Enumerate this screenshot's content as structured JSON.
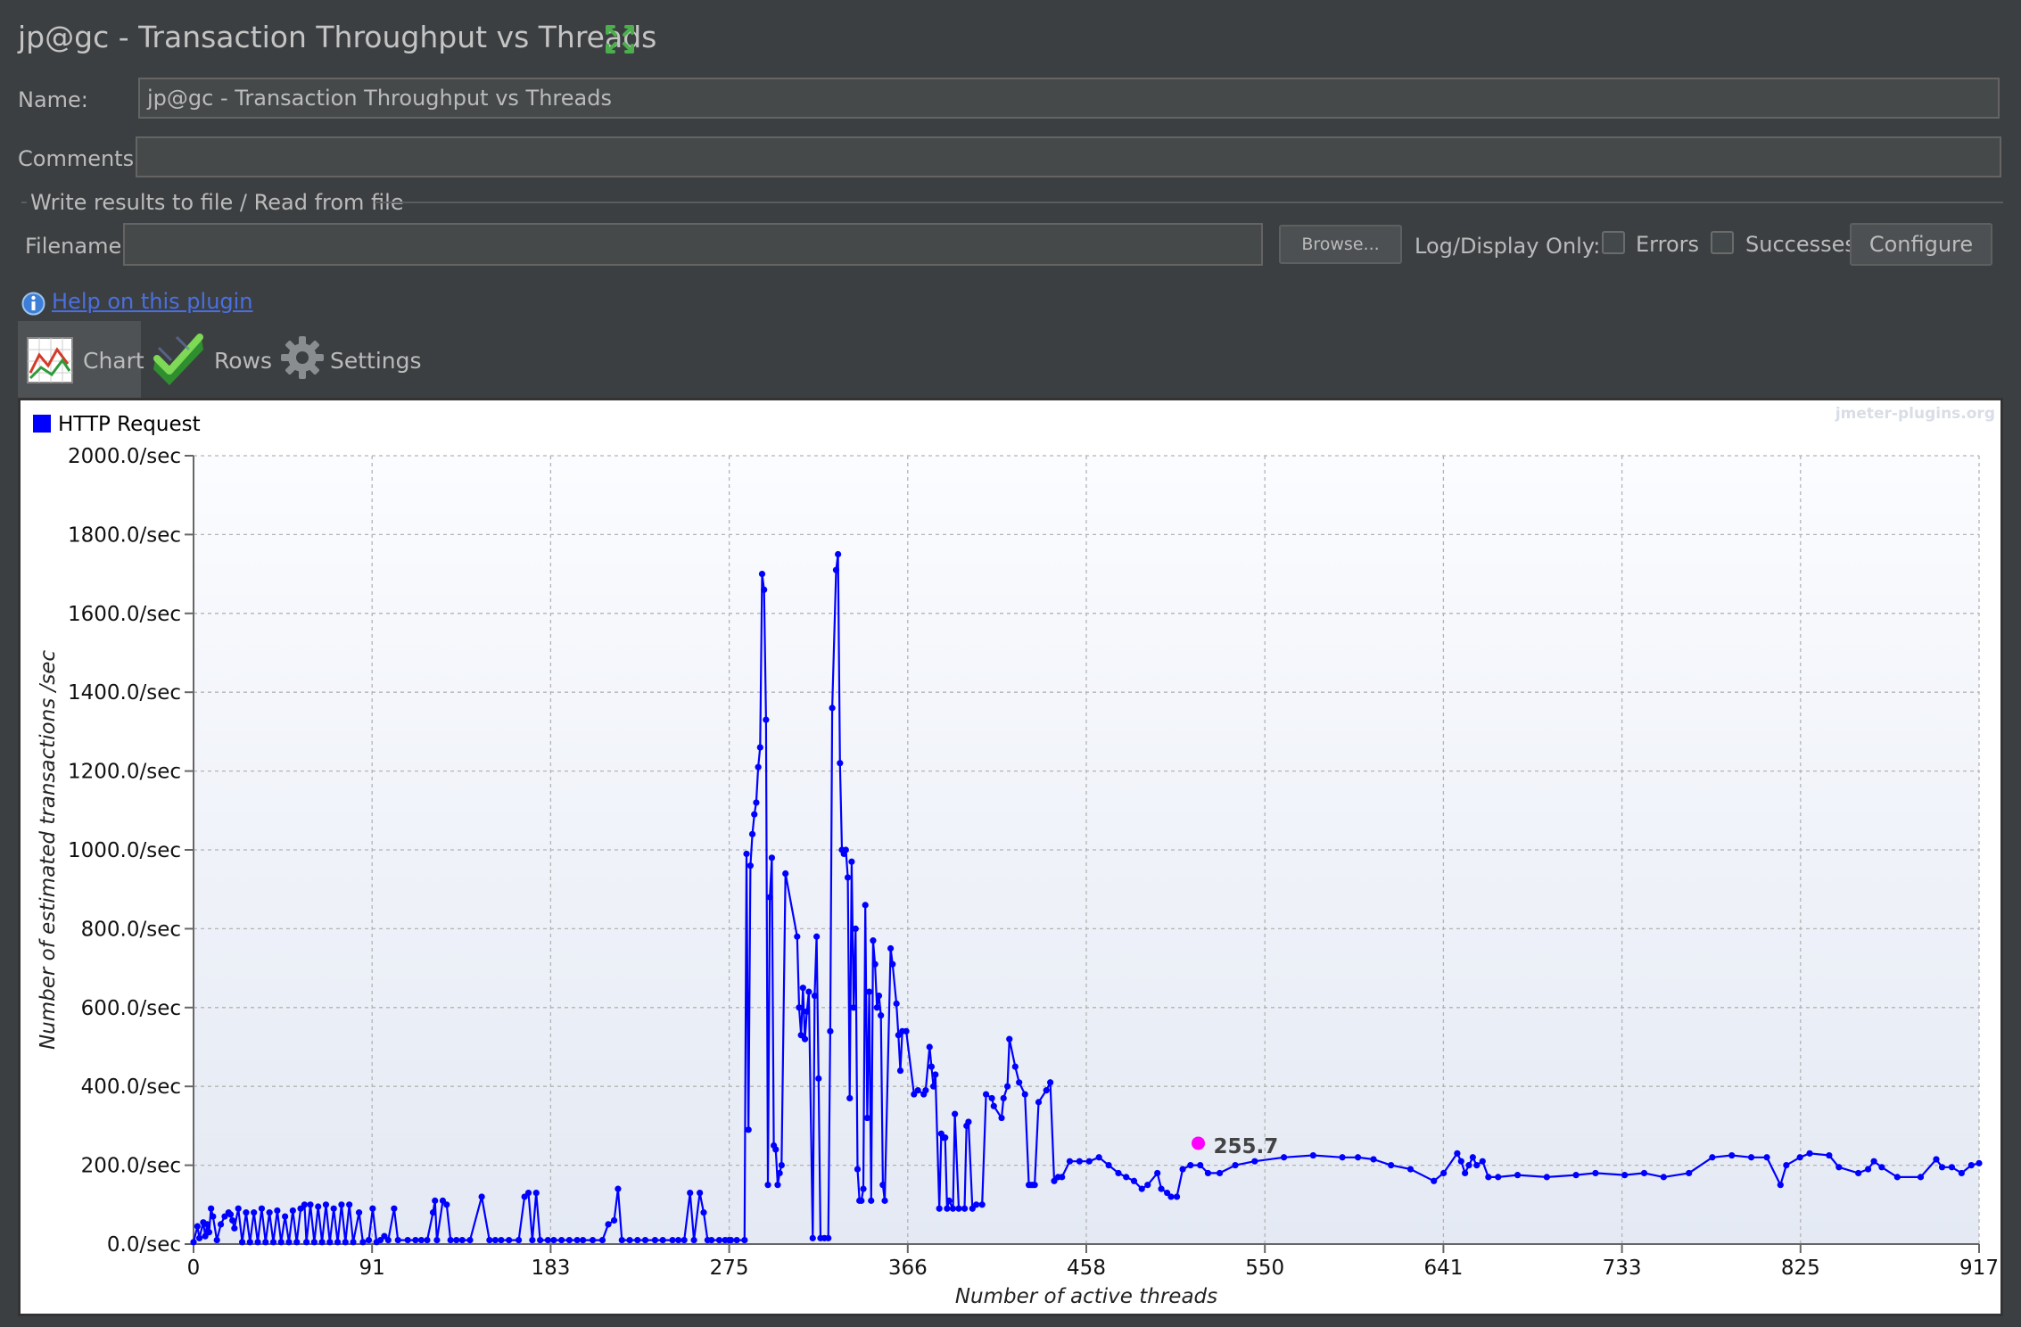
{
  "window": {
    "title": "jp@gc - Transaction Throughput vs Threads",
    "maximize_icon": "maximize-icon"
  },
  "form": {
    "name_label": "Name:",
    "name_value": "jp@gc - Transaction Throughput vs Threads",
    "comments_label": "Comments:",
    "comments_value": "",
    "file_group_title": "Write results to file / Read from file",
    "filename_label": "Filename",
    "filename_value": "",
    "browse_label": "Browse...",
    "log_display_label": "Log/Display Only:",
    "errors_label": "Errors",
    "errors_checked": false,
    "successes_label": "Successes",
    "successes_checked": false,
    "configure_label": "Configure"
  },
  "help": {
    "link_text": "Help on this plugin",
    "icon": "info-icon"
  },
  "tabs": [
    {
      "label": "Chart",
      "icon": "chart-icon",
      "selected": true
    },
    {
      "label": "Rows",
      "icon": "checkmark-icon",
      "selected": false
    },
    {
      "label": "Settings",
      "icon": "gear-icon",
      "selected": false
    }
  ],
  "colors": {
    "series": "#0000ff",
    "tooltip_marker": "#ff00ff",
    "background": "#3c3f41"
  },
  "chart_data": {
    "type": "line",
    "title": "",
    "watermark": "jmeter-plugins.org",
    "xlabel": "Number of active threads",
    "ylabel": "Number of estimated transactions /sec",
    "xlim": [
      0,
      917
    ],
    "ylim": [
      0,
      2000
    ],
    "x_ticks": [
      "0",
      "91",
      "183",
      "275",
      "366",
      "458",
      "550",
      "641",
      "733",
      "825",
      "917"
    ],
    "y_ticks": [
      "0.0/sec",
      "200.0/sec",
      "400.0/sec",
      "600.0/sec",
      "800.0/sec",
      "1000.0/sec",
      "1200.0/sec",
      "1400.0/sec",
      "1600.0/sec",
      "1800.0/sec",
      "2000.0/sec"
    ],
    "grid": true,
    "legend": {
      "placement": "top-left",
      "entries": [
        "HTTP Request"
      ]
    },
    "tooltip": {
      "x": 516,
      "y": 255.7,
      "label": "255.7"
    },
    "series": [
      {
        "name": "HTTP Request",
        "points": [
          [
            0,
            5
          ],
          [
            2,
            45
          ],
          [
            3,
            15
          ],
          [
            5,
            55
          ],
          [
            6,
            20
          ],
          [
            7,
            50
          ],
          [
            8,
            30
          ],
          [
            9,
            90
          ],
          [
            10,
            70
          ],
          [
            12,
            10
          ],
          [
            14,
            50
          ],
          [
            16,
            70
          ],
          [
            18,
            80
          ],
          [
            19,
            75
          ],
          [
            20,
            60
          ],
          [
            21,
            40
          ],
          [
            23,
            90
          ],
          [
            25,
            5
          ],
          [
            27,
            80
          ],
          [
            29,
            5
          ],
          [
            31,
            80
          ],
          [
            33,
            5
          ],
          [
            35,
            90
          ],
          [
            37,
            5
          ],
          [
            39,
            80
          ],
          [
            41,
            5
          ],
          [
            43,
            85
          ],
          [
            45,
            5
          ],
          [
            47,
            70
          ],
          [
            49,
            5
          ],
          [
            51,
            85
          ],
          [
            53,
            5
          ],
          [
            55,
            90
          ],
          [
            57,
            100
          ],
          [
            58,
            5
          ],
          [
            60,
            100
          ],
          [
            62,
            5
          ],
          [
            64,
            95
          ],
          [
            66,
            5
          ],
          [
            68,
            100
          ],
          [
            70,
            5
          ],
          [
            72,
            90
          ],
          [
            74,
            5
          ],
          [
            76,
            100
          ],
          [
            78,
            5
          ],
          [
            80,
            100
          ],
          [
            82,
            5
          ],
          [
            85,
            80
          ],
          [
            87,
            5
          ],
          [
            90,
            10
          ],
          [
            92,
            90
          ],
          [
            94,
            5
          ],
          [
            96,
            10
          ],
          [
            98,
            20
          ],
          [
            100,
            10
          ],
          [
            103,
            90
          ],
          [
            105,
            10
          ],
          [
            110,
            10
          ],
          [
            114,
            10
          ],
          [
            117,
            10
          ],
          [
            120,
            10
          ],
          [
            123,
            80
          ],
          [
            124,
            110
          ],
          [
            125,
            10
          ],
          [
            128,
            110
          ],
          [
            130,
            100
          ],
          [
            132,
            10
          ],
          [
            135,
            10
          ],
          [
            138,
            10
          ],
          [
            142,
            10
          ],
          [
            148,
            120
          ],
          [
            152,
            10
          ],
          [
            155,
            10
          ],
          [
            158,
            10
          ],
          [
            162,
            10
          ],
          [
            167,
            10
          ],
          [
            170,
            120
          ],
          [
            172,
            130
          ],
          [
            174,
            10
          ],
          [
            176,
            130
          ],
          [
            178,
            10
          ],
          [
            182,
            10
          ],
          [
            185,
            10
          ],
          [
            189,
            10
          ],
          [
            193,
            10
          ],
          [
            197,
            10
          ],
          [
            200,
            10
          ],
          [
            205,
            10
          ],
          [
            210,
            10
          ],
          [
            213,
            50
          ],
          [
            216,
            60
          ],
          [
            218,
            140
          ],
          [
            220,
            10
          ],
          [
            224,
            10
          ],
          [
            228,
            10
          ],
          [
            232,
            10
          ],
          [
            237,
            10
          ],
          [
            241,
            10
          ],
          [
            246,
            10
          ],
          [
            249,
            10
          ],
          [
            252,
            10
          ],
          [
            255,
            130
          ],
          [
            257,
            10
          ],
          [
            260,
            130
          ],
          [
            262,
            80
          ],
          [
            264,
            10
          ],
          [
            266,
            10
          ],
          [
            270,
            10
          ],
          [
            273,
            10
          ],
          [
            275,
            10
          ],
          [
            276,
            10
          ],
          [
            279,
            10
          ],
          [
            283,
            10
          ],
          [
            284,
            990
          ],
          [
            285,
            290
          ],
          [
            286,
            960
          ],
          [
            287,
            1040
          ],
          [
            288,
            1090
          ],
          [
            289,
            1120
          ],
          [
            290,
            1210
          ],
          [
            291,
            1260
          ],
          [
            292,
            1700
          ],
          [
            293,
            1660
          ],
          [
            294,
            1330
          ],
          [
            295,
            150
          ],
          [
            296,
            880
          ],
          [
            297,
            980
          ],
          [
            298,
            250
          ],
          [
            299,
            240
          ],
          [
            300,
            150
          ],
          [
            301,
            180
          ],
          [
            302,
            200
          ],
          [
            304,
            940
          ],
          [
            310,
            780
          ],
          [
            311,
            600
          ],
          [
            312,
            530
          ],
          [
            313,
            650
          ],
          [
            314,
            520
          ],
          [
            315,
            590
          ],
          [
            316,
            640
          ],
          [
            318,
            15
          ],
          [
            319,
            630
          ],
          [
            320,
            780
          ],
          [
            321,
            420
          ],
          [
            322,
            15
          ],
          [
            324,
            15
          ],
          [
            326,
            15
          ],
          [
            327,
            540
          ],
          [
            328,
            1360
          ],
          [
            330,
            1710
          ],
          [
            331,
            1750
          ],
          [
            332,
            1220
          ],
          [
            333,
            1000
          ],
          [
            334,
            990
          ],
          [
            335,
            1000
          ],
          [
            336,
            930
          ],
          [
            337,
            370
          ],
          [
            338,
            970
          ],
          [
            339,
            600
          ],
          [
            340,
            800
          ],
          [
            341,
            190
          ],
          [
            342,
            110
          ],
          [
            343,
            110
          ],
          [
            344,
            140
          ],
          [
            345,
            860
          ],
          [
            346,
            320
          ],
          [
            347,
            640
          ],
          [
            348,
            110
          ],
          [
            349,
            770
          ],
          [
            350,
            710
          ],
          [
            351,
            600
          ],
          [
            352,
            630
          ],
          [
            353,
            580
          ],
          [
            354,
            150
          ],
          [
            355,
            110
          ],
          [
            358,
            750
          ],
          [
            359,
            710
          ],
          [
            361,
            610
          ],
          [
            362,
            530
          ],
          [
            363,
            440
          ],
          [
            364,
            540
          ],
          [
            366,
            540
          ],
          [
            370,
            380
          ],
          [
            372,
            390
          ],
          [
            375,
            380
          ],
          [
            376,
            390
          ],
          [
            378,
            500
          ],
          [
            379,
            450
          ],
          [
            380,
            400
          ],
          [
            381,
            430
          ],
          [
            383,
            90
          ],
          [
            384,
            280
          ],
          [
            385,
            270
          ],
          [
            386,
            270
          ],
          [
            387,
            90
          ],
          [
            388,
            110
          ],
          [
            390,
            90
          ],
          [
            391,
            330
          ],
          [
            393,
            90
          ],
          [
            396,
            90
          ],
          [
            397,
            300
          ],
          [
            398,
            310
          ],
          [
            400,
            90
          ],
          [
            402,
            100
          ],
          [
            405,
            100
          ],
          [
            407,
            380
          ],
          [
            410,
            370
          ],
          [
            411,
            350
          ],
          [
            415,
            320
          ],
          [
            416,
            370
          ],
          [
            418,
            400
          ],
          [
            419,
            520
          ],
          [
            422,
            450
          ],
          [
            424,
            410
          ],
          [
            427,
            380
          ],
          [
            429,
            150
          ],
          [
            430,
            150
          ],
          [
            431,
            150
          ],
          [
            432,
            150
          ],
          [
            434,
            360
          ],
          [
            438,
            390
          ],
          [
            440,
            410
          ],
          [
            442,
            160
          ],
          [
            444,
            170
          ],
          [
            446,
            170
          ],
          [
            450,
            210
          ],
          [
            455,
            210
          ],
          [
            460,
            210
          ],
          [
            465,
            220
          ],
          [
            470,
            200
          ],
          [
            475,
            180
          ],
          [
            479,
            170
          ],
          [
            483,
            160
          ],
          [
            487,
            140
          ],
          [
            490,
            150
          ],
          [
            495,
            180
          ],
          [
            497,
            140
          ],
          [
            500,
            130
          ],
          [
            502,
            120
          ],
          [
            505,
            120
          ],
          [
            508,
            190
          ],
          [
            512,
            200
          ],
          [
            517,
            200
          ],
          [
            521,
            180
          ],
          [
            527,
            180
          ],
          [
            535,
            200
          ],
          [
            545,
            210
          ],
          [
            560,
            220
          ],
          [
            575,
            225
          ],
          [
            590,
            220
          ],
          [
            598,
            220
          ],
          [
            606,
            215
          ],
          [
            615,
            200
          ],
          [
            625,
            190
          ],
          [
            637,
            160
          ],
          [
            642,
            180
          ],
          [
            649,
            230
          ],
          [
            651,
            210
          ],
          [
            653,
            180
          ],
          [
            655,
            200
          ],
          [
            657,
            220
          ],
          [
            659,
            200
          ],
          [
            662,
            210
          ],
          [
            665,
            170
          ],
          [
            670,
            170
          ],
          [
            680,
            175
          ],
          [
            695,
            170
          ],
          [
            710,
            175
          ],
          [
            720,
            180
          ],
          [
            735,
            175
          ],
          [
            745,
            180
          ],
          [
            755,
            170
          ],
          [
            768,
            180
          ],
          [
            780,
            220
          ],
          [
            790,
            225
          ],
          [
            800,
            220
          ],
          [
            808,
            220
          ],
          [
            815,
            150
          ],
          [
            818,
            200
          ],
          [
            825,
            220
          ],
          [
            830,
            230
          ],
          [
            840,
            225
          ],
          [
            845,
            195
          ],
          [
            855,
            180
          ],
          [
            860,
            190
          ],
          [
            863,
            210
          ],
          [
            867,
            195
          ],
          [
            875,
            170
          ],
          [
            887,
            170
          ],
          [
            895,
            215
          ],
          [
            898,
            195
          ],
          [
            903,
            195
          ],
          [
            908,
            180
          ],
          [
            913,
            200
          ],
          [
            917,
            205
          ]
        ]
      }
    ]
  }
}
